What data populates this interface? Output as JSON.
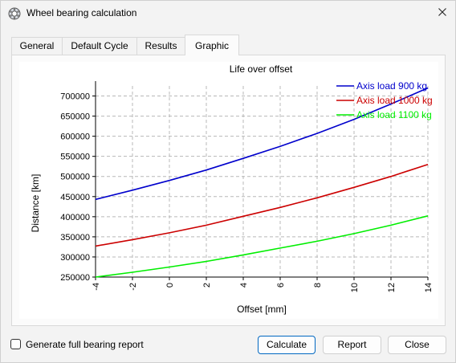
{
  "window": {
    "title": "Wheel bearing calculation",
    "icon": "bearing-icon",
    "close_icon": "close-icon"
  },
  "tabs": [
    {
      "label": "General",
      "active": false
    },
    {
      "label": "Default Cycle",
      "active": false
    },
    {
      "label": "Results",
      "active": false
    },
    {
      "label": "Graphic",
      "active": true
    }
  ],
  "chart_data": {
    "type": "line",
    "title": "Life over offset",
    "xlabel": "Offset [mm]",
    "ylabel": "Distance [km]",
    "xlim": [
      -4,
      14
    ],
    "ylim": [
      250000,
      725000
    ],
    "xticks": [
      -4,
      -2,
      0,
      2,
      4,
      6,
      8,
      10,
      12,
      14
    ],
    "yticks": [
      250000,
      300000,
      350000,
      400000,
      450000,
      500000,
      550000,
      600000,
      650000,
      700000
    ],
    "grid": true,
    "legend_position": "top-right",
    "x": [
      -4,
      -2,
      0,
      2,
      4,
      6,
      8,
      10,
      12,
      14
    ],
    "series": [
      {
        "name": "Axis load 900 kg",
        "color": "#0000cc",
        "values": [
          443000,
          466000,
          490000,
          516000,
          545000,
          575000,
          607000,
          642000,
          680000,
          720000
        ]
      },
      {
        "name": "Axis load 1000 kg",
        "color": "#cc0000",
        "values": [
          327000,
          343000,
          360000,
          379000,
          401000,
          423000,
          447000,
          473000,
          500000,
          530000
        ]
      },
      {
        "name": "Axis load 1100 kg",
        "color": "#00ee00",
        "values": [
          250000,
          262000,
          275000,
          289000,
          305000,
          322000,
          339000,
          358000,
          379000,
          402000
        ]
      }
    ]
  },
  "footer": {
    "checkbox_label": "Generate full bearing report",
    "checkbox_checked": false,
    "calculate_label": "Calculate",
    "report_label": "Report",
    "close_label": "Close"
  }
}
